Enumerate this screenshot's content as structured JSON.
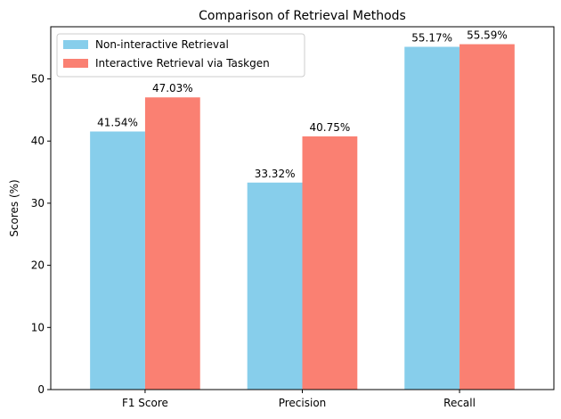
{
  "chart_data": {
    "type": "bar",
    "title": "Comparison of Retrieval Methods",
    "xlabel": "",
    "ylabel": "Scores (%)",
    "categories": [
      "F1 Score",
      "Precision",
      "Recall"
    ],
    "ylim": [
      0,
      58.4
    ],
    "yticks": [
      0,
      10,
      20,
      30,
      40,
      50
    ],
    "grid": false,
    "legend_position": "top-left",
    "series": [
      {
        "name": "Non-interactive Retrieval",
        "color": "#87CEEB",
        "values": [
          41.54,
          33.32,
          55.17
        ],
        "labels": [
          "41.54%",
          "33.32%",
          "55.17%"
        ]
      },
      {
        "name": "Interactive Retrieval via Taskgen",
        "color": "#FA8072",
        "values": [
          47.03,
          40.75,
          55.59
        ],
        "labels": [
          "47.03%",
          "40.75%",
          "55.59%"
        ]
      }
    ]
  }
}
